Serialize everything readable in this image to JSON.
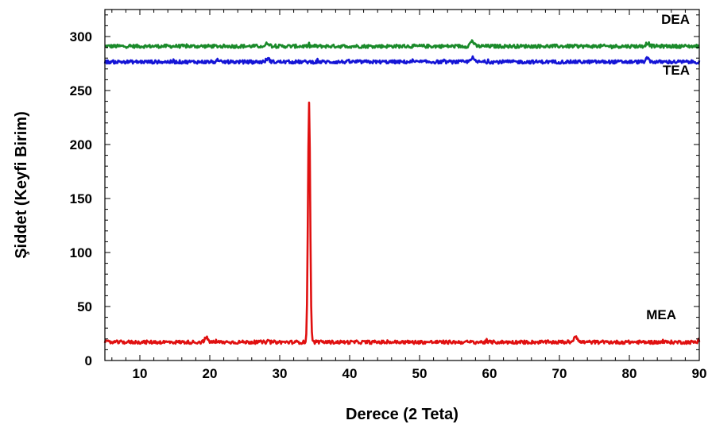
{
  "chart_data": {
    "type": "line",
    "xlabel": "Derece (2 Teta)",
    "ylabel": "Şiddet (Keyfi Birim)",
    "xlim": [
      5,
      90
    ],
    "ylim": [
      0,
      325
    ],
    "x_ticks": [
      10,
      20,
      30,
      40,
      50,
      60,
      70,
      80,
      90
    ],
    "y_ticks": [
      0,
      50,
      100,
      150,
      200,
      250,
      300
    ],
    "grid": false,
    "legend": "none",
    "series": [
      {
        "name": "DEA",
        "color": "#1a8a2a",
        "baseline": 291,
        "noise": 1.6,
        "peaks": [
          {
            "x": 57.5,
            "height": 5
          },
          {
            "x": 28.3,
            "height": 3
          },
          {
            "x": 82.6,
            "height": 3
          }
        ]
      },
      {
        "name": "TEA",
        "color": "#1414d6",
        "baseline": 276.5,
        "noise": 1.6,
        "peaks": [
          {
            "x": 57.5,
            "height": 4
          },
          {
            "x": 28.3,
            "height": 3
          },
          {
            "x": 82.6,
            "height": 3
          }
        ]
      },
      {
        "name": "MEA",
        "color": "#e01010",
        "baseline": 17,
        "noise": 1.6,
        "peaks": [
          {
            "x": 34.2,
            "height": 222
          },
          {
            "x": 72.3,
            "height": 6
          },
          {
            "x": 19.5,
            "height": 4
          }
        ]
      }
    ]
  }
}
